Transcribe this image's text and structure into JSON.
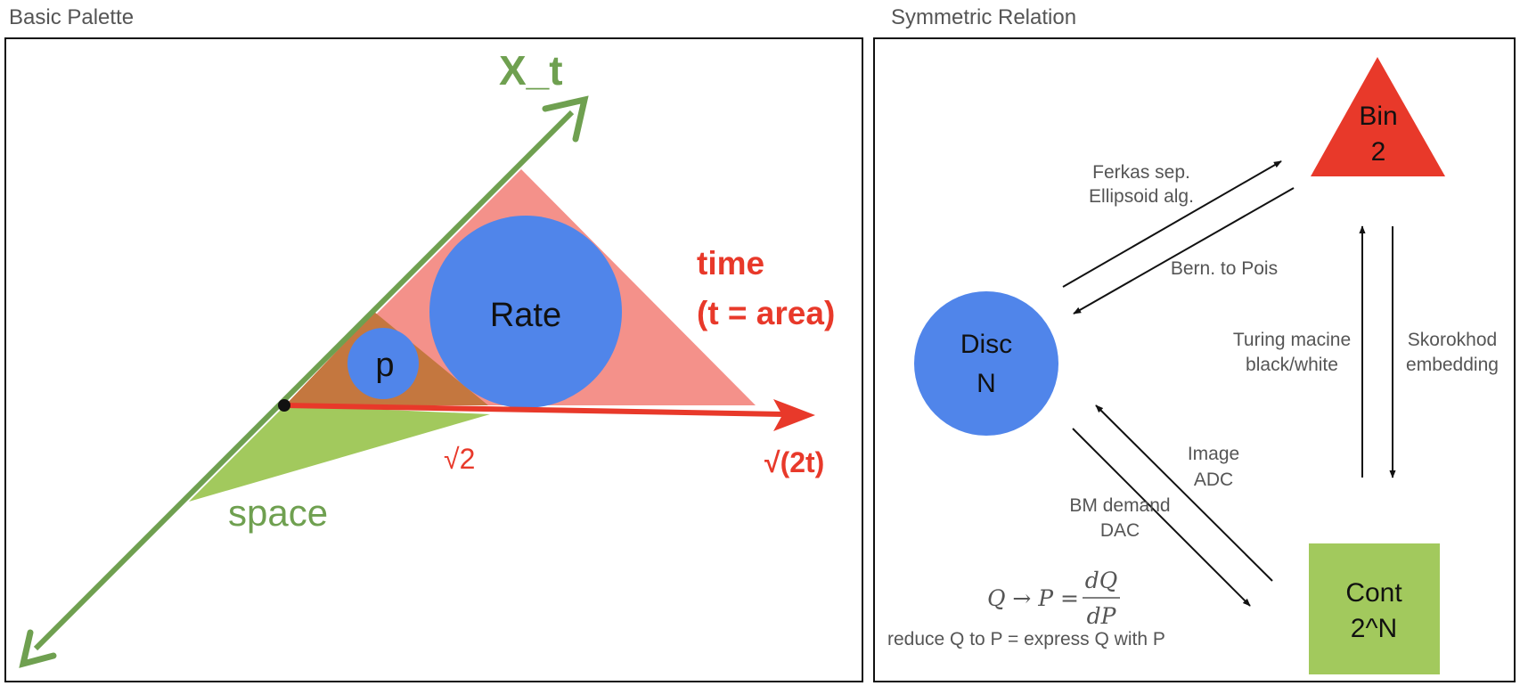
{
  "left_panel": {
    "title": "Basic Palette",
    "axis_label": "X_t",
    "rate_label": "Rate",
    "p_label": "p",
    "time_label_line1": "time",
    "time_label_line2": "(t = area)",
    "sqrt2_label": "√2",
    "sqrt2t_label": "√(2t)",
    "space_label": "space",
    "colors": {
      "green": "#6fa050",
      "red": "#e8392a",
      "pink": "#f4918a",
      "blue": "#5085ea",
      "brown": "#c4773f",
      "lime": "#a2c95d"
    }
  },
  "right_panel": {
    "title": "Symmetric Relation",
    "nodes": {
      "bin": {
        "line1": "Bin",
        "line2": "2",
        "color": "#e8392a"
      },
      "disc": {
        "line1": "Disc",
        "line2": "N",
        "color": "#5085ea"
      },
      "cont": {
        "line1": "Cont",
        "line2": "2^N",
        "color": "#a2c95d"
      }
    },
    "edge_labels": {
      "ferkas_line1": "Ferkas sep.",
      "ferkas_line2": "Ellipsoid alg.",
      "bern": "Bern. to Pois",
      "turing_line1": "Turing macine",
      "turing_line2": "black/white",
      "skorokhod_line1": "Skorokhod",
      "skorokhod_line2": "embedding",
      "image_line1": "Image",
      "image_line2": "ADC",
      "bm_line1": "BM demand",
      "bm_line2": "DAC"
    },
    "formula": {
      "lhs": "Q → P =",
      "numerator": "dQ",
      "denominator": "dP"
    },
    "reduce_text": "reduce Q to P = express Q with P"
  }
}
